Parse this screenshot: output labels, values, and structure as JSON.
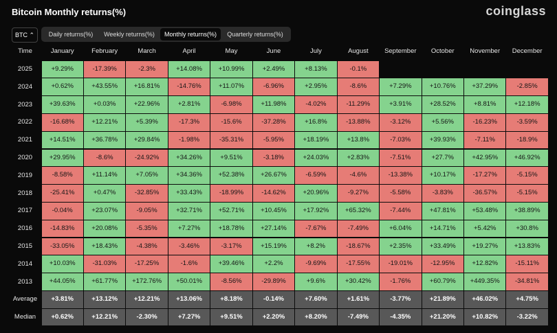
{
  "header": {
    "title": "Bitcoin Monthly returns(%)",
    "brand": "coinglass"
  },
  "controls": {
    "asset": "BTC",
    "tabs": [
      "Daily returns(%)",
      "Weekly returns(%)",
      "Monthly returns(%)",
      "Quarterly returns(%)"
    ]
  },
  "table": {
    "columns": [
      "Time",
      "January",
      "February",
      "March",
      "April",
      "May",
      "June",
      "July",
      "August",
      "September",
      "October",
      "November",
      "December"
    ],
    "rows": [
      {
        "label": "2025",
        "cells": [
          "+9.29%",
          "-17.39%",
          "-2.3%",
          "+14.08%",
          "+10.99%",
          "+2.49%",
          "+8.13%",
          "-0.1%",
          null,
          null,
          null,
          null
        ]
      },
      {
        "label": "2024",
        "cells": [
          "+0.62%",
          "+43.55%",
          "+16.81%",
          "-14.76%",
          "+11.07%",
          "-6.96%",
          "+2.95%",
          "-8.6%",
          "+7.29%",
          "+10.76%",
          "+37.29%",
          "-2.85%"
        ]
      },
      {
        "label": "2023",
        "cells": [
          "+39.63%",
          "+0.03%",
          "+22.96%",
          "+2.81%",
          "-6.98%",
          "+11.98%",
          "-4.02%",
          "-11.29%",
          "+3.91%",
          "+28.52%",
          "+8.81%",
          "+12.18%"
        ]
      },
      {
        "label": "2022",
        "cells": [
          "-16.68%",
          "+12.21%",
          "+5.39%",
          "-17.3%",
          "-15.6%",
          "-37.28%",
          "+16.8%",
          "-13.88%",
          "-3.12%",
          "+5.56%",
          "-16.23%",
          "-3.59%"
        ]
      },
      {
        "label": "2021",
        "cells": [
          "+14.51%",
          "+36.78%",
          "+29.84%",
          "-1.98%",
          "-35.31%",
          "-5.95%",
          "+18.19%",
          "+13.8%",
          "-7.03%",
          "+39.93%",
          "-7.11%",
          "-18.9%"
        ]
      },
      {
        "label": "2020",
        "cells": [
          "+29.95%",
          "-8.6%",
          "-24.92%",
          "+34.26%",
          "+9.51%",
          "-3.18%",
          "+24.03%",
          "+2.83%",
          "-7.51%",
          "+27.7%",
          "+42.95%",
          "+46.92%"
        ]
      },
      {
        "label": "2019",
        "cells": [
          "-8.58%",
          "+11.14%",
          "+7.05%",
          "+34.36%",
          "+52.38%",
          "+26.67%",
          "-6.59%",
          "-4.6%",
          "-13.38%",
          "+10.17%",
          "-17.27%",
          "-5.15%"
        ]
      },
      {
        "label": "2018",
        "cells": [
          "-25.41%",
          "+0.47%",
          "-32.85%",
          "+33.43%",
          "-18.99%",
          "-14.62%",
          "+20.96%",
          "-9.27%",
          "-5.58%",
          "-3.83%",
          "-36.57%",
          "-5.15%"
        ]
      },
      {
        "label": "2017",
        "cells": [
          "-0.04%",
          "+23.07%",
          "-9.05%",
          "+32.71%",
          "+52.71%",
          "+10.45%",
          "+17.92%",
          "+65.32%",
          "-7.44%",
          "+47.81%",
          "+53.48%",
          "+38.89%"
        ]
      },
      {
        "label": "2016",
        "cells": [
          "-14.83%",
          "+20.08%",
          "-5.35%",
          "+7.27%",
          "+18.78%",
          "+27.14%",
          "-7.67%",
          "-7.49%",
          "+6.04%",
          "+14.71%",
          "+5.42%",
          "+30.8%"
        ]
      },
      {
        "label": "2015",
        "cells": [
          "-33.05%",
          "+18.43%",
          "-4.38%",
          "-3.46%",
          "-3.17%",
          "+15.19%",
          "+8.2%",
          "-18.67%",
          "+2.35%",
          "+33.49%",
          "+19.27%",
          "+13.83%"
        ]
      },
      {
        "label": "2014",
        "cells": [
          "+10.03%",
          "-31.03%",
          "-17.25%",
          "-1.6%",
          "+39.46%",
          "+2.2%",
          "-9.69%",
          "-17.55%",
          "-19.01%",
          "-12.95%",
          "+12.82%",
          "-15.11%"
        ]
      },
      {
        "label": "2013",
        "cells": [
          "+44.05%",
          "+61.77%",
          "+172.76%",
          "+50.01%",
          "-8.56%",
          "-29.89%",
          "+9.6%",
          "+30.42%",
          "-1.76%",
          "+60.79%",
          "+449.35%",
          "-34.81%"
        ]
      }
    ],
    "summary_rows": [
      {
        "label": "Average",
        "cells": [
          "+3.81%",
          "+13.12%",
          "+12.21%",
          "+13.06%",
          "+8.18%",
          "-0.14%",
          "+7.60%",
          "+1.61%",
          "-3.77%",
          "+21.89%",
          "+46.02%",
          "+4.75%"
        ]
      },
      {
        "label": "Median",
        "cells": [
          "+0.62%",
          "+12.21%",
          "-2.30%",
          "+7.27%",
          "+9.51%",
          "+2.20%",
          "+8.20%",
          "-7.49%",
          "-4.35%",
          "+21.20%",
          "+10.82%",
          "-3.22%"
        ]
      }
    ]
  }
}
